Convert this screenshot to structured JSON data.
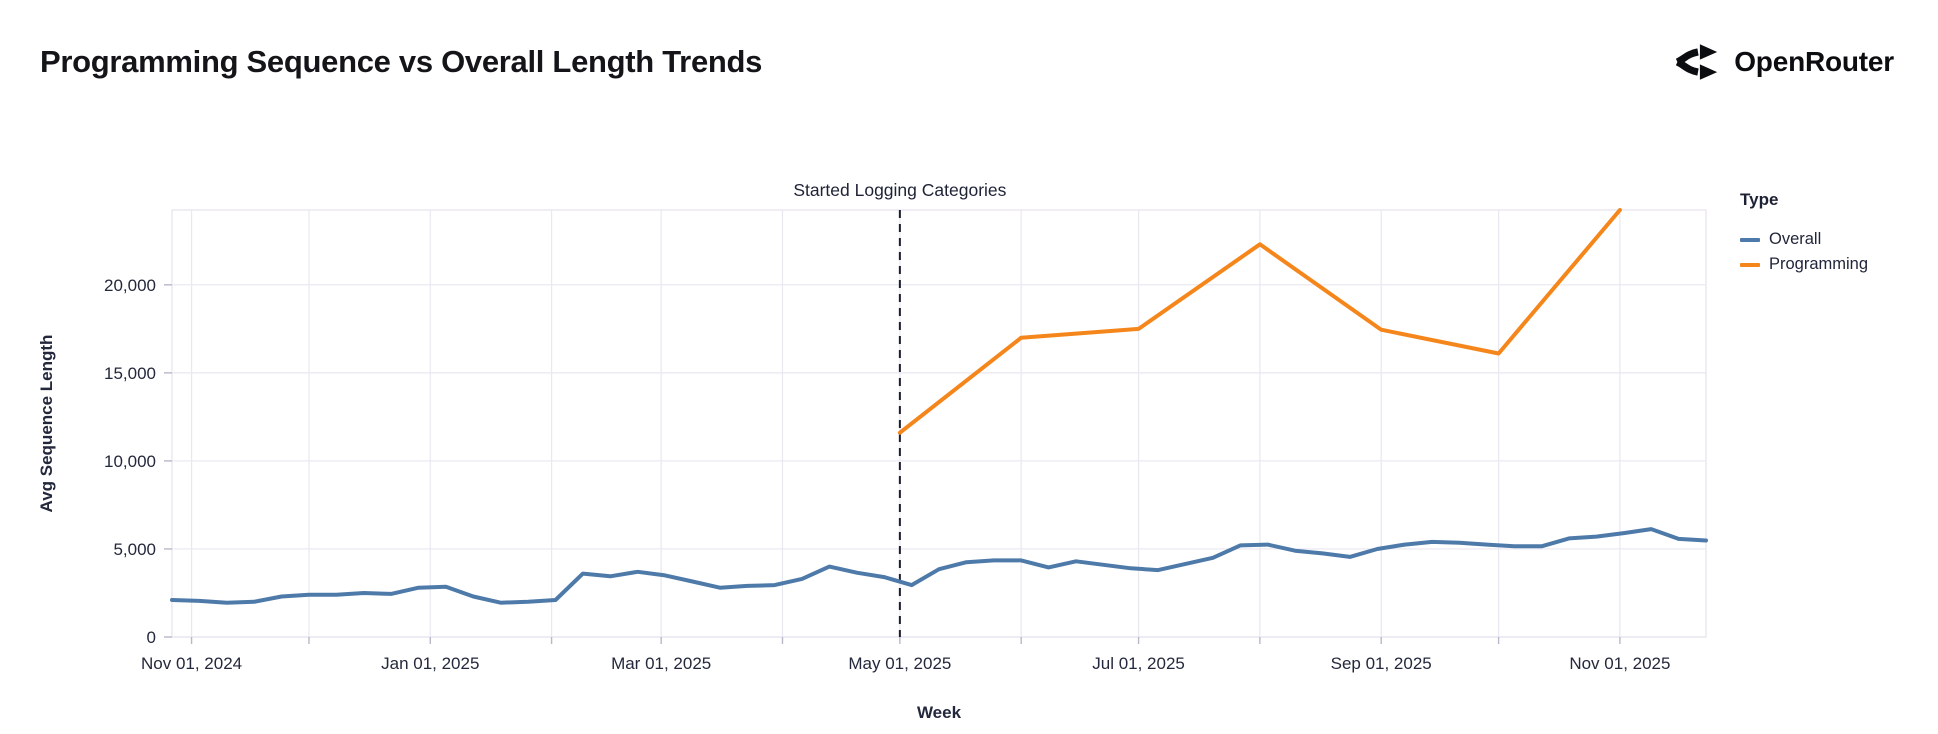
{
  "header": {
    "title": "Programming Sequence vs Overall Length Trends",
    "brand": "OpenRouter"
  },
  "chart_data": {
    "type": "line",
    "title": "Programming Sequence vs Overall Length Trends",
    "xlabel": "Week",
    "ylabel": "Avg Sequence Length",
    "ylim": [
      0,
      24250
    ],
    "grid": true,
    "legend_title": "Type",
    "legend_position": "right",
    "annotation": "Started Logging Categories",
    "annotation_date": "2025-05-01",
    "x_tick_labels": [
      "Nov 01, 2024",
      "Jan 01, 2025",
      "Mar 01, 2025",
      "May 01, 2025",
      "Jul 01, 2025",
      "Sep 01, 2025",
      "Nov 01, 2025"
    ],
    "x_tick_dates": [
      "2024-11-01",
      "2025-01-01",
      "2025-03-01",
      "2025-05-01",
      "2025-07-01",
      "2025-09-01",
      "2025-11-01"
    ],
    "x_grid_dates": [
      "2024-11-01",
      "2024-12-01",
      "2025-01-01",
      "2025-02-01",
      "2025-03-01",
      "2025-04-01",
      "2025-05-01",
      "2025-06-01",
      "2025-07-01",
      "2025-08-01",
      "2025-09-01",
      "2025-10-01",
      "2025-11-01"
    ],
    "x_domain": [
      "2024-10-27",
      "2025-11-23"
    ],
    "y_ticks": [
      0,
      5000,
      10000,
      15000,
      20000
    ],
    "y_tick_labels": [
      "0",
      "5,000",
      "10,000",
      "15,000",
      "20,000"
    ],
    "series": [
      {
        "name": "Overall",
        "color": "#4e7aa9",
        "dates": [
          "2024-10-27",
          "2024-11-03",
          "2024-11-10",
          "2024-11-17",
          "2024-11-24",
          "2024-12-01",
          "2024-12-08",
          "2024-12-15",
          "2024-12-22",
          "2024-12-29",
          "2025-01-05",
          "2025-01-12",
          "2025-01-19",
          "2025-01-26",
          "2025-02-02",
          "2025-02-09",
          "2025-02-16",
          "2025-02-23",
          "2025-03-02",
          "2025-03-09",
          "2025-03-16",
          "2025-03-23",
          "2025-03-30",
          "2025-04-06",
          "2025-04-13",
          "2025-04-20",
          "2025-04-27",
          "2025-05-04",
          "2025-05-11",
          "2025-05-18",
          "2025-05-25",
          "2025-06-01",
          "2025-06-08",
          "2025-06-15",
          "2025-06-22",
          "2025-06-29",
          "2025-07-06",
          "2025-07-13",
          "2025-07-20",
          "2025-07-27",
          "2025-08-03",
          "2025-08-10",
          "2025-08-17",
          "2025-08-24",
          "2025-08-31",
          "2025-09-07",
          "2025-09-14",
          "2025-09-21",
          "2025-09-28",
          "2025-10-05",
          "2025-10-12",
          "2025-10-19",
          "2025-10-26",
          "2025-11-02",
          "2025-11-09",
          "2025-11-16",
          "2025-11-23"
        ],
        "values": [
          2100,
          2050,
          1950,
          2000,
          2300,
          2400,
          2400,
          2500,
          2450,
          2800,
          2850,
          2300,
          1950,
          2000,
          2100,
          3600,
          3450,
          3700,
          3500,
          3150,
          2800,
          2900,
          2950,
          3300,
          4000,
          3650,
          3400,
          2950,
          3850,
          4250,
          4350,
          4350,
          3950,
          4300,
          4100,
          3900,
          3800,
          4150,
          4500,
          5200,
          5250,
          4900,
          4750,
          4550,
          5000,
          5250,
          5400,
          5350,
          5250,
          5150,
          5150,
          5600,
          5700,
          5900,
          6130,
          5570,
          5480
        ]
      },
      {
        "name": "Programming",
        "color": "#f5861b",
        "dates": [
          "2025-05-01",
          "2025-06-01",
          "2025-07-01",
          "2025-08-01",
          "2025-09-01",
          "2025-10-01",
          "2025-11-01"
        ],
        "values": [
          11600,
          17000,
          17500,
          22300,
          17450,
          16100,
          24250
        ]
      }
    ]
  },
  "colors": {
    "grid": "#e9e7f0",
    "tick": "#b9b7c8",
    "axis_text": "#24283c",
    "annotation_line": "#191d2e",
    "background": "#ffffff"
  }
}
